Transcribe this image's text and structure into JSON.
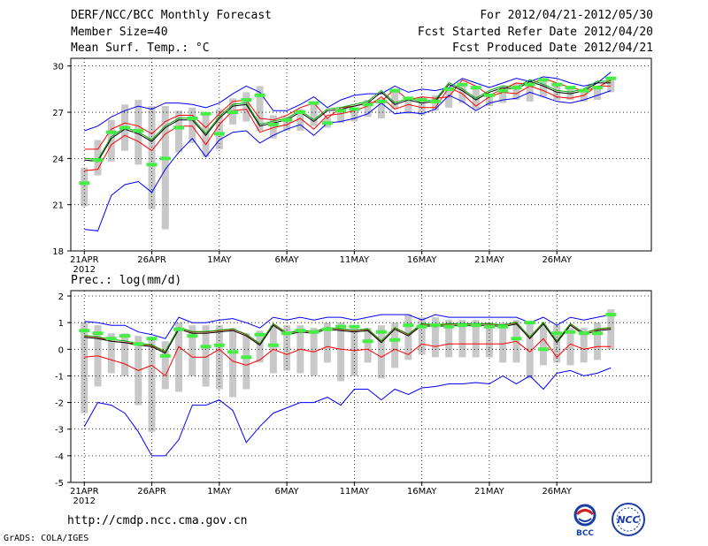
{
  "header": {
    "title": "DERF/NCC/BCC Monthly Forecast",
    "member_size": "Member Size=40",
    "variable": "Mean Surf. Temp.: °C",
    "period": "For 2012/04/21-2012/05/30",
    "refer_date": "Fcst Started Refer Date 2012/04/20",
    "produced_date": "Fcst Produced Date 2012/04/21"
  },
  "precip_label": "Prec.: log(mm/d)",
  "footer": {
    "url": "http://cmdp.ncc.cma.gov.cn",
    "credit": "GrADS: COLA/IGES",
    "logo_bcc": "BCC",
    "logo_ncc": "NCC"
  },
  "colors": {
    "max_min": "#0000ff",
    "p10_p90": "#ff0000",
    "mean": "#000000",
    "median": "#00aa00",
    "obs": "#44ee44",
    "box": "#c8c8c8",
    "grid": "#000000"
  },
  "chart_data": [
    {
      "type": "line",
      "title": "Mean Surf. Temp.: °C",
      "x": [
        1,
        2,
        3,
        4,
        5,
        6,
        7,
        8,
        9,
        10,
        11,
        12,
        13,
        14,
        15,
        16,
        17,
        18,
        19,
        20,
        21,
        22,
        23,
        24,
        25,
        26,
        27,
        28,
        29,
        30,
        31,
        32,
        33,
        34,
        35,
        36,
        37,
        38,
        39,
        40
      ],
      "xtick_positions": [
        1,
        6,
        11,
        16,
        21,
        26,
        31,
        36
      ],
      "xtick_labels": [
        "21APR",
        "26APR",
        "1MAY",
        "6MAY",
        "11MAY",
        "16MAY",
        "21MAY",
        "26MAY"
      ],
      "xtick_sublabels": [
        "2012",
        "",
        "",
        "",
        "",
        "",
        "",
        ""
      ],
      "xlim": [
        0,
        43
      ],
      "ylim": [
        18,
        30.5
      ],
      "yticks": [
        18,
        21,
        24,
        27,
        30
      ],
      "series": [
        {
          "name": "max",
          "values": [
            25.8,
            26.1,
            26.7,
            27.1,
            27.4,
            27.2,
            27.6,
            27.6,
            27.5,
            27.3,
            27.6,
            28.2,
            28.7,
            28.3,
            27.1,
            27.1,
            27.5,
            28.0,
            27.3,
            27.8,
            28.1,
            28.2,
            28.2,
            28.7,
            28.3,
            28.5,
            28.4,
            28.6,
            29.2,
            28.9,
            28.6,
            28.9,
            29.2,
            29.0,
            29.3,
            29.2,
            28.9,
            28.7,
            28.9,
            29.6
          ]
        },
        {
          "name": "p90",
          "values": [
            24.6,
            24.6,
            25.9,
            26.3,
            26.1,
            25.6,
            26.4,
            26.8,
            26.8,
            26.0,
            26.9,
            27.7,
            27.8,
            26.6,
            26.5,
            26.8,
            27.3,
            27.6,
            26.6,
            27.3,
            27.4,
            27.6,
            27.7,
            28.5,
            27.8,
            28.0,
            27.9,
            28.0,
            29.1,
            28.7,
            28.1,
            28.5,
            28.9,
            28.8,
            29.2,
            28.9,
            28.6,
            28.4,
            28.6,
            29.1
          ]
        },
        {
          "name": "mean",
          "values": [
            23.9,
            23.8,
            25.3,
            25.9,
            25.6,
            25.1,
            26.0,
            26.5,
            26.5,
            25.5,
            26.6,
            27.4,
            27.5,
            26.1,
            26.3,
            26.5,
            27.0,
            26.4,
            27.1,
            27.2,
            27.4,
            27.6,
            28.3,
            27.5,
            27.8,
            27.6,
            27.7,
            28.8,
            28.4,
            27.8,
            28.3,
            28.6,
            28.5,
            29.0,
            28.7,
            28.3,
            28.2,
            28.4,
            28.9,
            28.9
          ]
        },
        {
          "name": "p10",
          "values": [
            23.2,
            23.3,
            24.9,
            25.5,
            25.1,
            24.5,
            25.6,
            26.1,
            26.1,
            24.9,
            26.2,
            27.1,
            27.2,
            25.7,
            26.0,
            26.2,
            26.6,
            25.9,
            26.8,
            26.9,
            27.1,
            27.4,
            28.0,
            27.2,
            27.5,
            27.3,
            27.3,
            28.6,
            28.2,
            27.4,
            28.0,
            28.3,
            28.2,
            28.7,
            28.4,
            28.0,
            27.9,
            28.1,
            28.7,
            28.7
          ]
        },
        {
          "name": "min",
          "values": [
            19.4,
            19.3,
            21.6,
            22.3,
            22.5,
            21.8,
            23.3,
            24.4,
            25.3,
            24.1,
            25.2,
            25.7,
            25.8,
            25.0,
            25.5,
            25.9,
            26.2,
            25.5,
            26.3,
            26.4,
            26.6,
            26.9,
            27.6,
            26.9,
            27.0,
            26.9,
            27.2,
            28.1,
            27.7,
            27.1,
            27.6,
            27.8,
            27.9,
            28.3,
            28.0,
            27.7,
            27.6,
            27.8,
            28.1,
            28.4
          ]
        }
      ],
      "obs_values": [
        22.4,
        23.9,
        25.7,
        26.0,
        25.8,
        23.6,
        24.0,
        26.0,
        26.6,
        26.9,
        25.6,
        27.0,
        27.8,
        28.1,
        26.2,
        26.5,
        27.0,
        27.6,
        26.3,
        27.1,
        27.2,
        27.5,
        27.7,
        28.4,
        27.9,
        27.8,
        27.7,
        28.5,
        28.8,
        28.6,
        28.1,
        28.4,
        28.6,
        28.8,
        29.1,
        28.8,
        28.6,
        28.4,
        28.6,
        29.2
      ],
      "box_low": [
        20.9,
        22.9,
        23.8,
        24.5,
        23.6,
        20.7,
        19.4,
        24.4,
        25.0,
        24.1,
        24.6,
        26.2,
        26.4,
        25.8,
        25.3,
        25.8,
        25.8,
        26.1,
        26.0,
        26.3,
        26.4,
        26.7,
        26.6,
        27.2,
        26.9,
        26.8,
        27.1,
        27.3,
        27.6,
        27.2,
        27.4,
        27.6,
        27.8,
        27.7,
        28.0,
        27.8,
        27.8,
        27.7,
        27.8,
        28.3
      ],
      "box_high": [
        23.4,
        25.2,
        26.5,
        27.5,
        27.8,
        27.4,
        27.4,
        27.1,
        27.3,
        26.8,
        27.2,
        27.9,
        28.3,
        28.7,
        26.8,
        26.7,
        27.2,
        27.5,
        26.6,
        27.2,
        27.3,
        27.8,
        27.9,
        28.4,
        28.0,
        28.0,
        28.1,
        28.4,
        28.8,
        28.6,
        28.2,
        28.6,
        28.9,
        29.0,
        29.0,
        28.8,
        28.6,
        28.5,
        28.7,
        29.1
      ]
    },
    {
      "type": "line",
      "title": "Prec.: log(mm/d)",
      "x": [
        1,
        2,
        3,
        4,
        5,
        6,
        7,
        8,
        9,
        10,
        11,
        12,
        13,
        14,
        15,
        16,
        17,
        18,
        19,
        20,
        21,
        22,
        23,
        24,
        25,
        26,
        27,
        28,
        29,
        30,
        31,
        32,
        33,
        34,
        35,
        36,
        37,
        38,
        39,
        40
      ],
      "xtick_positions": [
        1,
        6,
        11,
        16,
        21,
        26,
        31,
        36
      ],
      "xtick_labels": [
        "21APR",
        "26APR",
        "1MAY",
        "6MAY",
        "11MAY",
        "16MAY",
        "21MAY",
        "26MAY"
      ],
      "xtick_sublabels": [
        "2012",
        "",
        "",
        "",
        "",
        "",
        "",
        ""
      ],
      "xlim": [
        0,
        43
      ],
      "ylim": [
        -5,
        2.2
      ],
      "yticks": [
        -5,
        -4,
        -3,
        -2,
        -1,
        0,
        1,
        2
      ],
      "series": [
        {
          "name": "max",
          "values": [
            1.05,
            1.0,
            0.9,
            0.9,
            0.65,
            0.55,
            0.4,
            1.2,
            1.0,
            1.0,
            1.1,
            1.15,
            1.0,
            0.8,
            1.2,
            1.1,
            1.2,
            1.1,
            1.2,
            1.2,
            1.1,
            1.2,
            1.3,
            1.3,
            1.3,
            1.1,
            1.3,
            1.2,
            1.2,
            1.2,
            1.2,
            1.2,
            1.2,
            1.0,
            1.2,
            0.9,
            1.2,
            1.1,
            1.2,
            1.3
          ]
        },
        {
          "name": "p90",
          "values": [
            0.5,
            0.45,
            0.3,
            0.25,
            0.2,
            0.15,
            -0.1,
            0.8,
            0.65,
            0.65,
            0.7,
            0.75,
            0.55,
            0.2,
            0.95,
            0.6,
            0.7,
            0.65,
            0.8,
            0.75,
            0.7,
            0.75,
            0.3,
            0.8,
            0.55,
            0.95,
            0.9,
            0.95,
            0.95,
            0.95,
            0.95,
            0.9,
            1.0,
            0.45,
            1.0,
            0.3,
            0.95,
            0.6,
            0.75,
            0.8
          ]
        },
        {
          "name": "mean",
          "values": [
            0.45,
            0.4,
            0.3,
            0.25,
            0.15,
            0.1,
            -0.15,
            0.75,
            0.6,
            0.6,
            0.65,
            0.7,
            0.5,
            0.15,
            0.9,
            0.55,
            0.65,
            0.6,
            0.75,
            0.7,
            0.65,
            0.7,
            0.25,
            0.75,
            0.5,
            0.9,
            0.85,
            0.9,
            0.9,
            0.9,
            0.9,
            0.85,
            0.95,
            0.4,
            0.95,
            0.25,
            0.9,
            0.55,
            0.7,
            0.75
          ]
        },
        {
          "name": "p10",
          "values": [
            -0.3,
            -0.25,
            -0.4,
            -0.55,
            -0.8,
            -0.6,
            -1.0,
            0.1,
            -0.3,
            -0.3,
            0.0,
            -0.45,
            -0.6,
            -0.4,
            0.0,
            -0.2,
            0.0,
            -0.1,
            0.1,
            0.0,
            -0.05,
            0.0,
            -0.3,
            0.0,
            -0.2,
            0.2,
            0.1,
            0.2,
            0.2,
            0.2,
            0.2,
            0.2,
            0.3,
            -0.1,
            0.4,
            -0.3,
            0.2,
            0.0,
            0.1,
            0.1
          ]
        },
        {
          "name": "min",
          "values": [
            -2.9,
            -2.0,
            -2.1,
            -2.4,
            -3.1,
            -4.0,
            -4.0,
            -3.4,
            -2.1,
            -2.1,
            -1.9,
            -2.3,
            -3.5,
            -2.9,
            -2.4,
            -2.2,
            -2.0,
            -2.0,
            -1.8,
            -2.1,
            -1.5,
            -1.5,
            -1.9,
            -1.5,
            -1.7,
            -1.45,
            -1.4,
            -1.3,
            -1.3,
            -1.25,
            -1.3,
            -1.0,
            -1.3,
            -1.0,
            -1.5,
            -0.9,
            -0.8,
            -1.0,
            -0.9,
            -0.7
          ]
        }
      ],
      "obs_values": [
        0.7,
        0.6,
        0.4,
        0.5,
        0.2,
        0.4,
        -0.25,
        0.75,
        0.5,
        0.1,
        0.15,
        -0.1,
        -0.3,
        0.55,
        0.15,
        0.6,
        0.7,
        0.65,
        0.75,
        0.85,
        0.85,
        0.3,
        0.65,
        0.35,
        0.9,
        0.85,
        0.9,
        0.85,
        0.9,
        0.9,
        0.85,
        0.85,
        0.4,
        1.0,
        0.0,
        0.6,
        0.65,
        0.6,
        0.6,
        1.3
      ],
      "box_low": [
        -2.4,
        -1.4,
        -0.9,
        -1.0,
        -2.1,
        -3.1,
        -1.5,
        -1.6,
        -1.0,
        -1.4,
        -1.5,
        -1.8,
        -1.5,
        -0.5,
        -0.9,
        -0.8,
        -0.9,
        -1.0,
        -0.5,
        -1.2,
        -1.0,
        -0.5,
        -1.1,
        -0.7,
        -0.4,
        -0.2,
        -0.3,
        -0.3,
        -0.3,
        -0.3,
        -0.3,
        -0.5,
        -0.5,
        -1.1,
        -0.6,
        -0.5,
        -0.6,
        -0.5,
        -0.4,
        0.0
      ],
      "box_high": [
        1.0,
        0.9,
        0.6,
        0.6,
        0.5,
        0.4,
        0.3,
        1.0,
        0.9,
        0.9,
        0.9,
        0.8,
        0.6,
        0.7,
        0.9,
        0.9,
        0.9,
        0.8,
        1.0,
        1.0,
        0.9,
        0.8,
        0.9,
        1.0,
        1.3,
        1.2,
        1.2,
        1.1,
        1.1,
        1.1,
        1.0,
        1.0,
        1.1,
        1.0,
        0.9,
        0.9,
        0.8,
        0.8,
        1.0,
        1.5
      ]
    }
  ]
}
